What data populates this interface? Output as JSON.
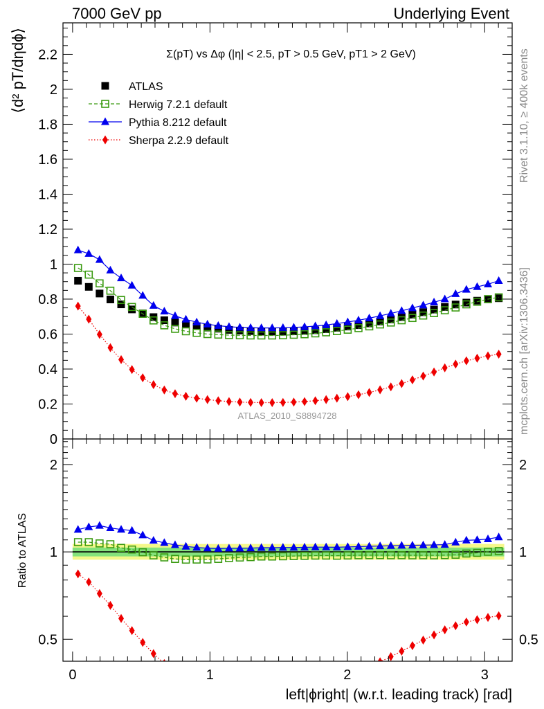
{
  "header": {
    "left": "7000 GeV pp",
    "right": "Underlying Event"
  },
  "side_labels": {
    "rivet": "Rivet 3.1.10, ≥ 400k events",
    "mcplots": "mcplots.cern.ch [arXiv:1306.3436]"
  },
  "chart_data": {
    "type": "scatter",
    "title": "Σ(pT) vs Δφ (|η| < 2.5, pT > 0.5 GeV, pT1 > 2 GeV)",
    "analysis_label": "ATLAS_2010_S8894728",
    "xlabel": "left|ϕright| (w.r.t. leading track) [rad]",
    "ylabel_main": "⟨d² pT/dηdϕ⟩",
    "ylabel_ratio": "Ratio to ATLAS",
    "xlim": [
      -0.07,
      3.2
    ],
    "ylim_main": [
      0,
      2.38
    ],
    "ylim_ratio": [
      0.42,
      2.45
    ],
    "ratio_scale": "log",
    "x_ticks": [
      "0",
      "1",
      "2",
      "3"
    ],
    "y_ticks_main": [
      "0",
      "0.2",
      "0.4",
      "0.6",
      "0.8",
      "1",
      "1.2",
      "1.4",
      "1.6",
      "1.8",
      "2",
      "2.2"
    ],
    "y_ticks_ratio": [
      "0.5",
      "1",
      "2"
    ],
    "legend_position": "top-left",
    "band_colors": {
      "inner": "#84e27c",
      "outer": "#f5f88a"
    },
    "x": [
      0.0393,
      0.1178,
      0.1963,
      0.2749,
      0.3534,
      0.432,
      0.5105,
      0.589,
      0.6676,
      0.7461,
      0.8247,
      0.9032,
      0.9817,
      1.0603,
      1.1388,
      1.2174,
      1.2959,
      1.3744,
      1.453,
      1.5315,
      1.6101,
      1.6886,
      1.7671,
      1.8457,
      1.9242,
      2.0028,
      2.0813,
      2.1598,
      2.2384,
      2.3169,
      2.3955,
      2.474,
      2.5525,
      2.6311,
      2.7096,
      2.7882,
      2.8667,
      2.9452,
      3.0238,
      3.1023
    ],
    "series": [
      {
        "name": "ATLAS",
        "color": "#000000",
        "marker": "square",
        "values": [
          0.905,
          0.87,
          0.832,
          0.798,
          0.77,
          0.741,
          0.718,
          0.697,
          0.679,
          0.666,
          0.655,
          0.645,
          0.637,
          0.631,
          0.624,
          0.62,
          0.617,
          0.614,
          0.614,
          0.614,
          0.616,
          0.618,
          0.622,
          0.628,
          0.636,
          0.643,
          0.651,
          0.661,
          0.672,
          0.684,
          0.697,
          0.711,
          0.725,
          0.74,
          0.755,
          0.769,
          0.78,
          0.791,
          0.799,
          0.805
        ]
      },
      {
        "name": "Herwig 7.2.1 default",
        "color": "#3a9a10",
        "marker": "open-square",
        "line": "dashed",
        "values": [
          0.978,
          0.94,
          0.89,
          0.848,
          0.795,
          0.755,
          0.716,
          0.678,
          0.65,
          0.63,
          0.616,
          0.607,
          0.6,
          0.597,
          0.594,
          0.593,
          0.592,
          0.592,
          0.592,
          0.593,
          0.596,
          0.599,
          0.604,
          0.61,
          0.617,
          0.625,
          0.634,
          0.644,
          0.655,
          0.666,
          0.679,
          0.692,
          0.706,
          0.72,
          0.736,
          0.752,
          0.77,
          0.785,
          0.8,
          0.81
        ]
      },
      {
        "name": "Pythia 8.212 default",
        "color": "#0000ee",
        "marker": "triangle",
        "line": "solid",
        "values": [
          1.08,
          1.06,
          1.025,
          0.965,
          0.92,
          0.878,
          0.82,
          0.763,
          0.73,
          0.704,
          0.684,
          0.668,
          0.656,
          0.648,
          0.642,
          0.638,
          0.636,
          0.635,
          0.635,
          0.636,
          0.638,
          0.641,
          0.646,
          0.652,
          0.66,
          0.669,
          0.679,
          0.691,
          0.704,
          0.718,
          0.733,
          0.749,
          0.765,
          0.782,
          0.8,
          0.83,
          0.855,
          0.87,
          0.885,
          0.905
        ]
      },
      {
        "name": "Sherpa 2.2.9 default",
        "color": "#ee0000",
        "marker": "diamond",
        "line": "dotted",
        "values": [
          0.76,
          0.685,
          0.598,
          0.522,
          0.454,
          0.397,
          0.35,
          0.311,
          0.28,
          0.259,
          0.244,
          0.233,
          0.225,
          0.219,
          0.214,
          0.211,
          0.209,
          0.208,
          0.208,
          0.209,
          0.211,
          0.214,
          0.219,
          0.225,
          0.233,
          0.242,
          0.253,
          0.266,
          0.281,
          0.298,
          0.317,
          0.338,
          0.36,
          0.383,
          0.407,
          0.428,
          0.447,
          0.462,
          0.475,
          0.485
        ]
      }
    ]
  }
}
